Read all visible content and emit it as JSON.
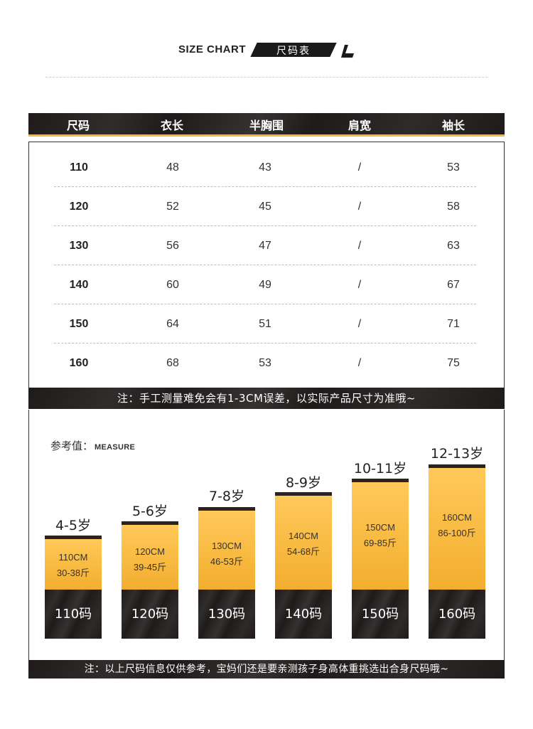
{
  "title": {
    "en": "SIZE CHART",
    "cn": "尺码表"
  },
  "table": {
    "headers": [
      "尺码",
      "衣长",
      "半胸围",
      "肩宽",
      "袖长"
    ],
    "rows": [
      [
        "110",
        "48",
        "43",
        "/",
        "53"
      ],
      [
        "120",
        "52",
        "45",
        "/",
        "58"
      ],
      [
        "130",
        "56",
        "47",
        "/",
        "63"
      ],
      [
        "140",
        "60",
        "49",
        "/",
        "67"
      ],
      [
        "150",
        "64",
        "51",
        "/",
        "71"
      ],
      [
        "160",
        "68",
        "53",
        "/",
        "75"
      ]
    ]
  },
  "note1": "注：手工测量难免会有1-3CM误差，以实际产品尺寸为准哦~",
  "reference": {
    "label_cn": "参考值：",
    "label_en": "MEASURE",
    "columns": [
      {
        "age": "4-5岁",
        "height": "110CM",
        "weight": "30-38斤",
        "size": "110码"
      },
      {
        "age": "5-6岁",
        "height": "120CM",
        "weight": "39-45斤",
        "size": "120码"
      },
      {
        "age": "7-8岁",
        "height": "130CM",
        "weight": "46-53斤",
        "size": "130码"
      },
      {
        "age": "8-9岁",
        "height": "140CM",
        "weight": "54-68斤",
        "size": "140码"
      },
      {
        "age": "10-11岁",
        "height": "150CM",
        "weight": "69-85斤",
        "size": "150码"
      },
      {
        "age": "12-13岁",
        "height": "160CM",
        "weight": "86-100斤",
        "size": "160码"
      }
    ]
  },
  "note2": "注：以上尺码信息仅供参考，宝妈们还是要亲测孩子身高体重挑选出合身尺码哦~",
  "colors": {
    "dark": "#1e1b1a",
    "accent": "#f4b83a"
  }
}
